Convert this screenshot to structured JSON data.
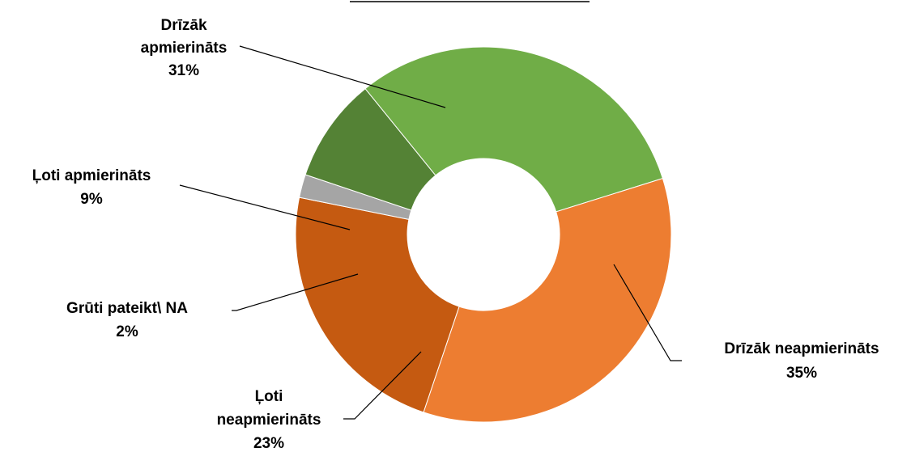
{
  "chart_data": {
    "type": "donut",
    "slices": [
      {
        "label_lines": [
          "Drīzāk",
          "apmierināts"
        ],
        "value": 31,
        "value_label": "31%",
        "color": "#70AD47"
      },
      {
        "label_lines": [
          "Drīzāk neapmierināts"
        ],
        "value": 35,
        "value_label": "35%",
        "color": "#ED7D31"
      },
      {
        "label_lines": [
          "Ļoti",
          "neapmierināts"
        ],
        "value": 23,
        "value_label": "23%",
        "color": "#C55A11"
      },
      {
        "label_lines": [
          "Grūti pateikt\\ NA"
        ],
        "value": 2,
        "value_label": "2%",
        "color": "#A5A5A5"
      },
      {
        "label_lines": [
          "Ļoti apmierināts"
        ],
        "value": 9,
        "value_label": "9%",
        "color": "#548235"
      }
    ],
    "legend": "none",
    "labels": "outside with leader lines"
  }
}
